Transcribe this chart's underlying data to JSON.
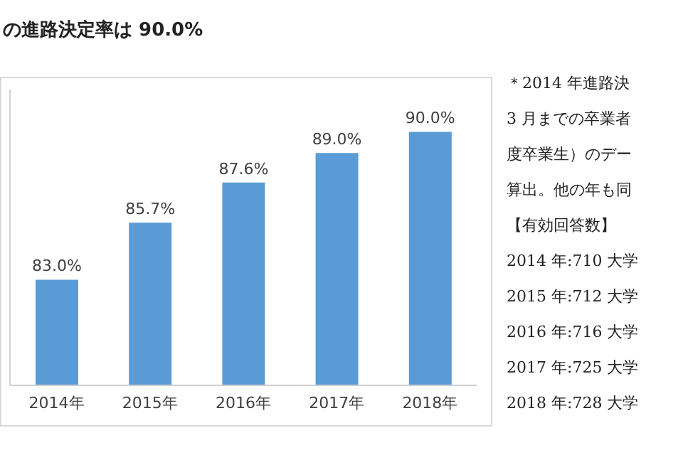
{
  "chart_data": {
    "type": "bar",
    "title": "の進路決定率は 90.0%",
    "categories": [
      "2014年",
      "2015年",
      "2016年",
      "2017年",
      "2018年"
    ],
    "values": [
      83.0,
      85.7,
      87.6,
      89.0,
      90.0
    ],
    "value_labels": [
      "83.0%",
      "85.7%",
      "87.6%",
      "89.0%",
      "90.0%"
    ],
    "color": "#5b9bd5",
    "ylim": [
      78,
      92
    ],
    "tick_labels": "x",
    "annotations": [
      "＊2014 年進路決",
      "3 月までの卒業者",
      "度卒業生）のデー",
      "算出。他の年も同",
      "【有効回答数】",
      "2014 年:710 大学",
      "2015 年:712 大学",
      "2016 年:716 大学",
      "2017 年:725 大学",
      "2018 年:728 大学"
    ]
  }
}
